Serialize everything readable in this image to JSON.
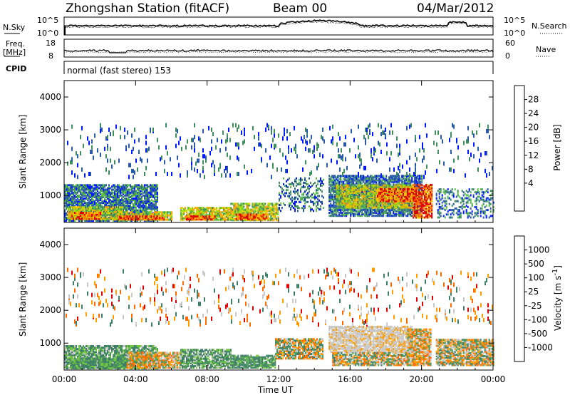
{
  "header": {
    "station": "Zhongshan Station (fitACF)",
    "beam": "Beam 00",
    "date": "04/Mar/2012"
  },
  "summary_panels": {
    "nsky_label": "N.Sky",
    "nsky_ticks": [
      "10^5",
      "10^0"
    ],
    "nsearch_label": "N.Search",
    "nsearch_ticks": [
      "10^5",
      "10^0"
    ],
    "freq_label": "Freq.",
    "freq_unit": "[MHz]",
    "freq_ticks": [
      "18",
      "8"
    ],
    "nave_label": "Nave",
    "nave_ticks": [
      "60",
      "0"
    ],
    "cpid_label": "CPID",
    "cpid_value": "normal (fast stereo) 153"
  },
  "chart_data": [
    {
      "type": "heatmap",
      "name": "power-panel",
      "ylabel": "Slant Range [km]",
      "y_ticks": [
        "4000",
        "3000",
        "2000",
        "1000"
      ],
      "y_range": [
        180,
        4500
      ],
      "x_range_hours": [
        0,
        24
      ],
      "colorbar": {
        "label": "Power [dB]",
        "ticks": [
          "28",
          "24",
          "20",
          "16",
          "12",
          "8",
          "4"
        ],
        "colors": [
          "#e00000",
          "#ff6a00",
          "#ff9c00",
          "#f0c800",
          "#a8e000",
          "#5cbe4a",
          "#3f8f5c",
          "#2a5aa6",
          "#0018ff"
        ]
      },
      "regions": [
        {
          "t0": 0.0,
          "t1": 5.2,
          "r0": 200,
          "r1": 1300,
          "kind": "low"
        },
        {
          "t0": 0.2,
          "t1": 3.3,
          "r0": 250,
          "r1": 650,
          "kind": "mid"
        },
        {
          "t0": 0.4,
          "t1": 2.0,
          "r0": 260,
          "r1": 450,
          "kind": "high"
        },
        {
          "t0": 2.8,
          "t1": 6.0,
          "r0": 230,
          "r1": 500,
          "kind": "mid"
        },
        {
          "t0": 3.0,
          "t1": 5.6,
          "r0": 240,
          "r1": 360,
          "kind": "high"
        },
        {
          "t0": 6.5,
          "t1": 9.3,
          "r0": 230,
          "r1": 600,
          "kind": "mid"
        },
        {
          "t0": 6.8,
          "t1": 8.4,
          "r0": 240,
          "r1": 370,
          "kind": "high"
        },
        {
          "t0": 9.3,
          "t1": 12.0,
          "r0": 220,
          "r1": 750,
          "kind": "mid"
        },
        {
          "t0": 9.6,
          "t1": 11.4,
          "r0": 250,
          "r1": 420,
          "kind": "high"
        },
        {
          "t0": 12.0,
          "t1": 14.5,
          "r0": 500,
          "r1": 1500,
          "kind": "sparse"
        },
        {
          "t0": 14.8,
          "t1": 20.0,
          "r0": 350,
          "r1": 1600,
          "kind": "low"
        },
        {
          "t0": 15.2,
          "t1": 19.5,
          "r0": 600,
          "r1": 1300,
          "kind": "mid"
        },
        {
          "t0": 17.5,
          "t1": 19.8,
          "r0": 800,
          "r1": 1200,
          "kind": "high"
        },
        {
          "t0": 19.5,
          "t1": 20.6,
          "r0": 300,
          "r1": 1300,
          "kind": "high"
        },
        {
          "t0": 20.8,
          "t1": 24.0,
          "r0": 300,
          "r1": 1200,
          "kind": "sparse"
        },
        {
          "t0": 0.0,
          "t1": 24.0,
          "r0": 1500,
          "r1": 3100,
          "kind": "scatter"
        }
      ]
    },
    {
      "type": "heatmap",
      "name": "velocity-panel",
      "ylabel": "Slant Range [km]",
      "y_ticks": [
        "4000",
        "3000",
        "2000",
        "1000"
      ],
      "y_range": [
        180,
        4500
      ],
      "x_range_hours": [
        0,
        24
      ],
      "xlabel": "Time UT",
      "x_ticks": [
        "00:00",
        "04:00",
        "08:00",
        "12:00",
        "16:00",
        "20:00",
        "00:00"
      ],
      "colorbar": {
        "label": "Velocity [m s^-1]",
        "ticks": [
          "1000",
          "500",
          "100",
          "25",
          "-25",
          "-100",
          "-500",
          "-1000"
        ],
        "colors": [
          "#2a5aa6",
          "#3f7f6a",
          "#4f9a5a",
          "#70c840",
          "#c8c8c8",
          "#ff9c00",
          "#ff6a00",
          "#f03c00",
          "#e00000"
        ]
      },
      "regions": [
        {
          "t0": 0.0,
          "t1": 5.2,
          "r0": 200,
          "r1": 900,
          "kind": "green"
        },
        {
          "t0": 0.3,
          "t1": 4.0,
          "r0": 220,
          "r1": 500,
          "kind": "green-dense"
        },
        {
          "t0": 3.5,
          "t1": 6.5,
          "r0": 220,
          "r1": 700,
          "kind": "orange"
        },
        {
          "t0": 6.5,
          "t1": 9.3,
          "r0": 220,
          "r1": 800,
          "kind": "green"
        },
        {
          "t0": 9.3,
          "t1": 11.8,
          "r0": 220,
          "r1": 600,
          "kind": "green-dense"
        },
        {
          "t0": 11.8,
          "t1": 14.5,
          "r0": 500,
          "r1": 1100,
          "kind": "mixed"
        },
        {
          "t0": 14.8,
          "t1": 19.5,
          "r0": 700,
          "r1": 1500,
          "kind": "grey"
        },
        {
          "t0": 15.0,
          "t1": 19.2,
          "r0": 300,
          "r1": 700,
          "kind": "mixed"
        },
        {
          "t0": 19.2,
          "t1": 20.5,
          "r0": 300,
          "r1": 1400,
          "kind": "orange"
        },
        {
          "t0": 20.8,
          "t1": 24.0,
          "r0": 300,
          "r1": 1100,
          "kind": "mixed"
        },
        {
          "t0": 0.0,
          "t1": 24.0,
          "r0": 1500,
          "r1": 3200,
          "kind": "scatter"
        }
      ]
    }
  ]
}
